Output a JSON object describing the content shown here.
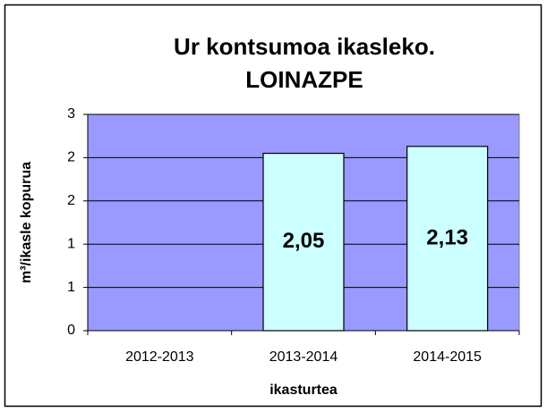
{
  "chart_data": {
    "type": "bar",
    "title": [
      "Ur kontsumoa ikasleko.",
      "LOINAZPE"
    ],
    "x_label": "ikasturtea",
    "y_label": "m³/ikasle kopurua",
    "categories": [
      "2012-2013",
      "2013-2014",
      "2014-2015"
    ],
    "values": [
      null,
      2.05,
      2.13
    ],
    "value_labels": [
      null,
      "2,05",
      "2,13"
    ],
    "color": "#ccffff",
    "plot_background": "#9999ff",
    "ylim": [
      0,
      2.5
    ],
    "yticks": [
      0,
      {
        "value": 0.5,
        "label": "1"
      },
      1,
      {
        "value": 1.5,
        "label": "2"
      },
      2,
      {
        "value": 2.5,
        "label": "3"
      }
    ],
    "grid": true
  }
}
